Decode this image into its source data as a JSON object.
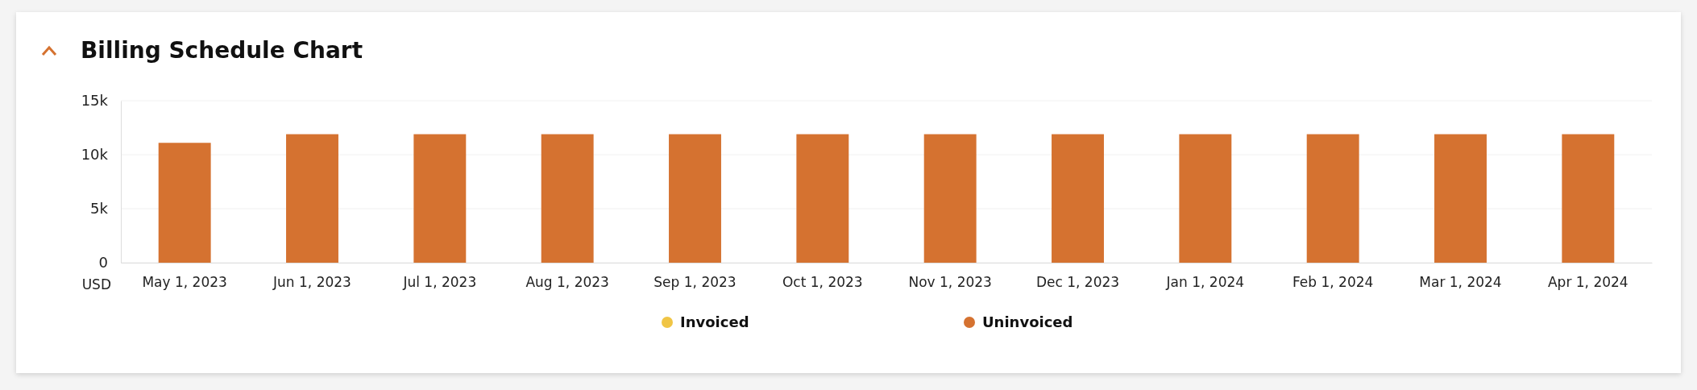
{
  "chart_data": {
    "type": "bar",
    "title": "Billing Schedule Chart",
    "ylabel": "USD",
    "categories": [
      "May 1, 2023",
      "Jun 1, 2023",
      "Jul 1, 2023",
      "Aug 1, 2023",
      "Sep 1, 2023",
      "Oct 1, 2023",
      "Nov 1, 2023",
      "Dec 1, 2023",
      "Jan 1, 2024",
      "Feb 1, 2024",
      "Mar 1, 2024",
      "Apr 1, 2024"
    ],
    "series": [
      {
        "name": "Invoiced",
        "color": "#f0c545",
        "values": [
          0,
          0,
          0,
          0,
          0,
          0,
          0,
          0,
          0,
          0,
          0,
          0
        ]
      },
      {
        "name": "Uninvoiced",
        "color": "#d57230",
        "values": [
          11100,
          11900,
          11900,
          11900,
          11900,
          11900,
          11900,
          11900,
          11900,
          11900,
          11900,
          11900
        ]
      }
    ],
    "stacked": true,
    "ylim": [
      0,
      15000
    ],
    "yticks": [
      {
        "value": 0,
        "label": "0"
      },
      {
        "value": 5000,
        "label": "5k"
      },
      {
        "value": 10000,
        "label": "10k"
      },
      {
        "value": 15000,
        "label": "15k"
      }
    ],
    "grid": "y",
    "legend": "bottom"
  }
}
